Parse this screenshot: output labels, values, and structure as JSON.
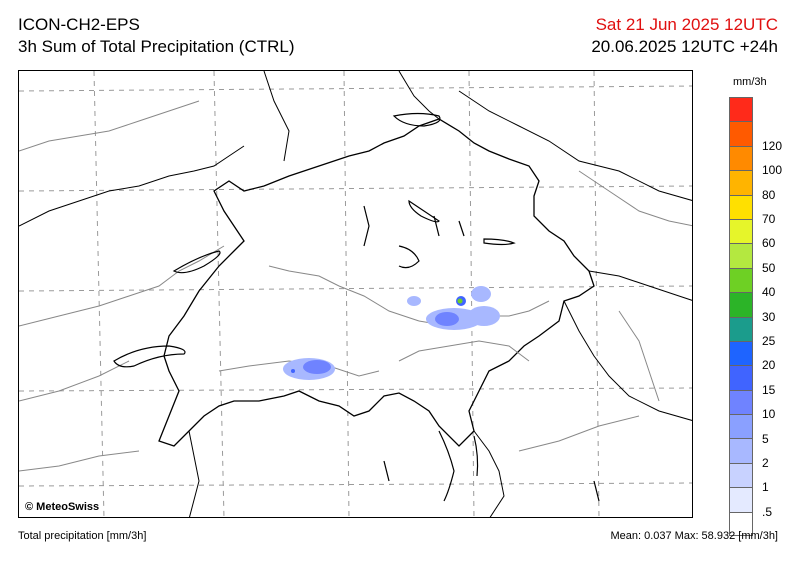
{
  "header": {
    "model": "ICON-CH2-EPS",
    "product": "3h Sum of Total Precipitation (CTRL)",
    "valid_time": "Sat 21 Jun 2025 12UTC",
    "run_info": "20.06.2025 12UTC +24h"
  },
  "map": {
    "copyright": "© MeteoSwiss"
  },
  "legend": {
    "unit": "mm/3h",
    "levels": [
      {
        "label": "",
        "color": "#ff2a1a"
      },
      {
        "label": "120",
        "color": "#ff5a00"
      },
      {
        "label": "100",
        "color": "#ff8a00"
      },
      {
        "label": "80",
        "color": "#ffb400"
      },
      {
        "label": "70",
        "color": "#ffe000"
      },
      {
        "label": "60",
        "color": "#e6f52a"
      },
      {
        "label": "50",
        "color": "#b4e840"
      },
      {
        "label": "40",
        "color": "#6ed024"
      },
      {
        "label": "30",
        "color": "#2cb428"
      },
      {
        "label": "25",
        "color": "#1b9c8c"
      },
      {
        "label": "20",
        "color": "#1e64ff"
      },
      {
        "label": "15",
        "color": "#4064ff"
      },
      {
        "label": "10",
        "color": "#6f83ff"
      },
      {
        "label": "5",
        "color": "#8aa0ff"
      },
      {
        "label": "2",
        "color": "#a8b8ff"
      },
      {
        "label": "1",
        "color": "#c8d2ff"
      },
      {
        "label": ".5",
        "color": "#e4eaff"
      },
      {
        "label": "",
        "color": "#ffffff"
      }
    ]
  },
  "footer": {
    "left": "Total precipitation [mm/3h]",
    "right": "Mean:  0.037 Max:  58.932 [mm/3h]"
  }
}
